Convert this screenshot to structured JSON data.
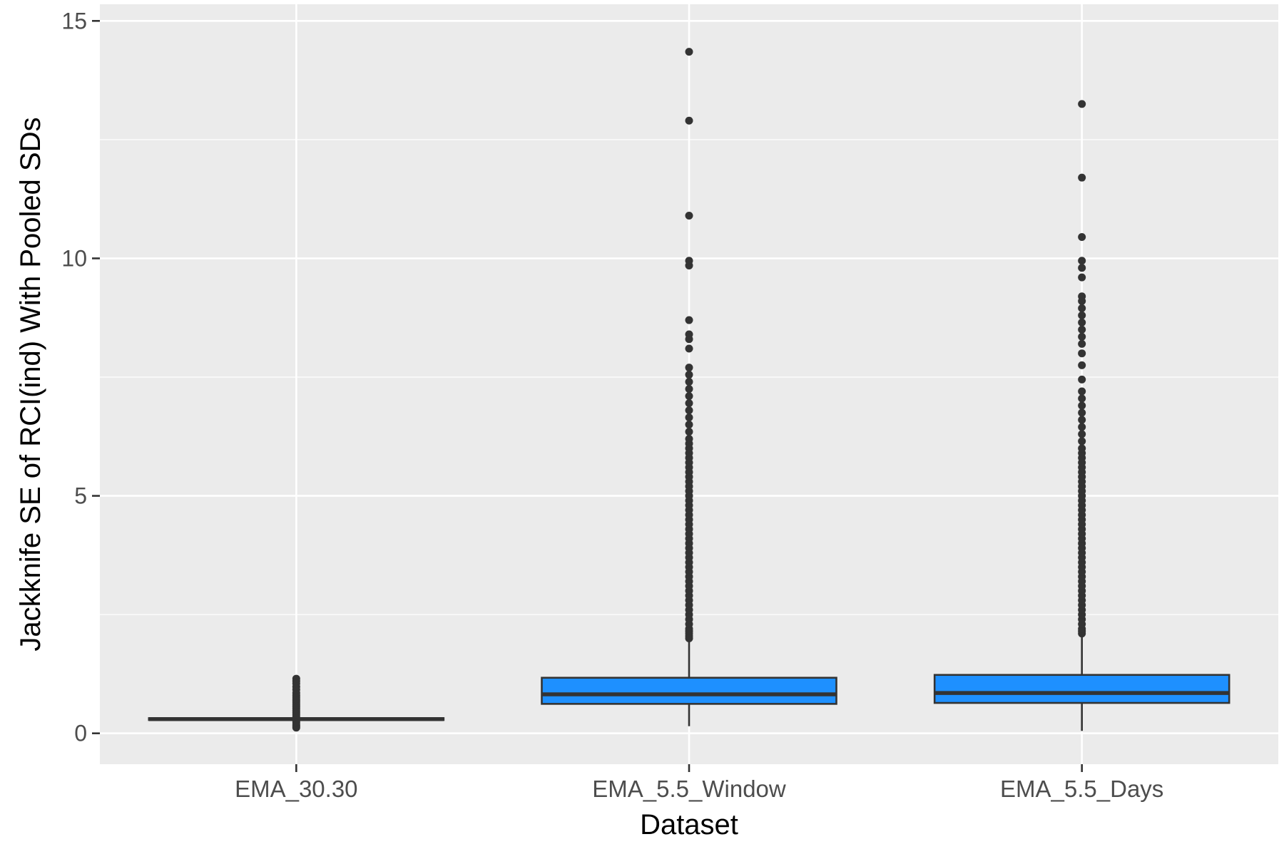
{
  "chart_data": {
    "type": "boxplot",
    "title": "",
    "xlabel": "Dataset",
    "ylabel": "Jackknife SE of RCI(ind) With Pooled SDs",
    "ylim": [
      -0.65,
      15.35
    ],
    "yticks": [
      0,
      5,
      10,
      15
    ],
    "ytick_labels": [
      "0",
      "5",
      "10",
      "15"
    ],
    "grid": true,
    "categories": [
      "EMA_30.30",
      "EMA_5.5_Window",
      "EMA_5.5_Days"
    ],
    "fill_color": "#1E90FF",
    "panel_color": "#EBEBEB",
    "point_color": "#333333",
    "boxes": [
      {
        "name": "EMA_30.30",
        "whisker_low": 0.28,
        "q1": 0.28,
        "median": 0.3,
        "q3": 0.32,
        "whisker_high": 0.33,
        "outliers": [
          0.12,
          0.15,
          0.18,
          0.22,
          0.25,
          0.36,
          0.4,
          0.44,
          0.48,
          0.52,
          0.56,
          0.6,
          0.64,
          0.68,
          0.72,
          0.76,
          0.8,
          0.85,
          0.92,
          0.98,
          1.05,
          1.1,
          1.15
        ]
      },
      {
        "name": "EMA_5.5_Window",
        "whisker_low": 0.15,
        "q1": 0.62,
        "median": 0.82,
        "q3": 1.17,
        "whisker_high": 2.0,
        "outliers": [
          2.0,
          2.05,
          2.1,
          2.15,
          2.2,
          2.3,
          2.4,
          2.5,
          2.6,
          2.7,
          2.8,
          2.9,
          3.0,
          3.1,
          3.2,
          3.3,
          3.4,
          3.5,
          3.6,
          3.7,
          3.8,
          3.9,
          4.0,
          4.1,
          4.2,
          4.3,
          4.4,
          4.5,
          4.6,
          4.7,
          4.8,
          4.9,
          5.0,
          5.1,
          5.2,
          5.3,
          5.4,
          5.5,
          5.6,
          5.7,
          5.8,
          5.9,
          6.0,
          6.1,
          6.2,
          6.35,
          6.5,
          6.65,
          6.8,
          6.95,
          7.1,
          7.25,
          7.4,
          7.55,
          7.7,
          8.1,
          8.3,
          8.4,
          8.7,
          9.85,
          9.95,
          10.9,
          12.9,
          14.35
        ]
      },
      {
        "name": "EMA_5.5_Days",
        "whisker_low": 0.05,
        "q1": 0.64,
        "median": 0.85,
        "q3": 1.23,
        "whisker_high": 2.1,
        "outliers": [
          2.1,
          2.15,
          2.2,
          2.3,
          2.4,
          2.5,
          2.6,
          2.7,
          2.8,
          2.9,
          3.0,
          3.1,
          3.2,
          3.3,
          3.4,
          3.5,
          3.6,
          3.7,
          3.8,
          3.9,
          4.0,
          4.1,
          4.2,
          4.3,
          4.4,
          4.5,
          4.6,
          4.7,
          4.8,
          4.9,
          5.0,
          5.1,
          5.2,
          5.3,
          5.4,
          5.5,
          5.6,
          5.7,
          5.8,
          5.9,
          6.0,
          6.15,
          6.3,
          6.45,
          6.6,
          6.75,
          6.9,
          7.05,
          7.2,
          7.45,
          7.75,
          8.0,
          8.2,
          8.35,
          8.5,
          8.65,
          8.8,
          8.95,
          9.1,
          9.2,
          9.6,
          9.8,
          9.95,
          10.45,
          11.7,
          13.25
        ]
      }
    ]
  }
}
